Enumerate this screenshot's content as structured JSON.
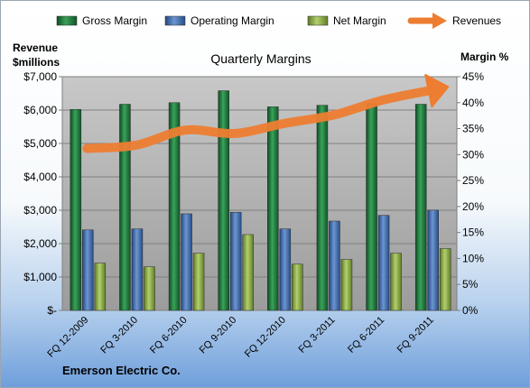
{
  "chart_data": {
    "type": "bar",
    "title": "Quarterly Margins",
    "company": "Emerson Electric Co.",
    "ylabel_left": [
      "Revenue",
      "$millions"
    ],
    "ylabel_right": "Margin %",
    "categories": [
      "FQ 12-2009",
      "FQ 3-2010",
      "FQ 6-2010",
      "FQ 9-2010",
      "FQ 12-2010",
      "FQ 3-2011",
      "FQ 6-2011",
      "FQ 9-2011"
    ],
    "series": [
      {
        "name": "Gross Margin",
        "axis": "right",
        "kind": "bar",
        "color": "#1f7a3c",
        "values": [
          38.7,
          39.7,
          40.0,
          42.3,
          39.2,
          39.5,
          39.8,
          39.7
        ]
      },
      {
        "name": "Operating Margin",
        "axis": "right",
        "kind": "bar",
        "color": "#3e6fb5",
        "values": [
          15.5,
          15.7,
          18.6,
          18.9,
          15.7,
          17.2,
          18.3,
          19.3
        ]
      },
      {
        "name": "Net Margin",
        "axis": "right",
        "kind": "bar",
        "color": "#8fb04a",
        "values": [
          9.1,
          8.4,
          11.0,
          14.6,
          8.9,
          9.8,
          11.0,
          11.9
        ]
      },
      {
        "name": "Revenues",
        "axis": "left",
        "kind": "line",
        "color": "#ed7d31",
        "values": [
          4850,
          4950,
          5400,
          5300,
          5600,
          5850,
          6300,
          6600
        ]
      }
    ],
    "y_left": {
      "min": 0,
      "max": 7000,
      "step": 1000,
      "tick_labels": [
        "$-",
        "$1,000",
        "$2,000",
        "$3,000",
        "$4,000",
        "$5,000",
        "$6,000",
        "$7,000"
      ]
    },
    "y_right": {
      "min": 0,
      "max": 45,
      "step": 5,
      "tick_labels": [
        "0%",
        "5%",
        "10%",
        "15%",
        "20%",
        "25%",
        "30%",
        "35%",
        "40%",
        "45%"
      ]
    },
    "legend_position": "top",
    "grid": true
  }
}
